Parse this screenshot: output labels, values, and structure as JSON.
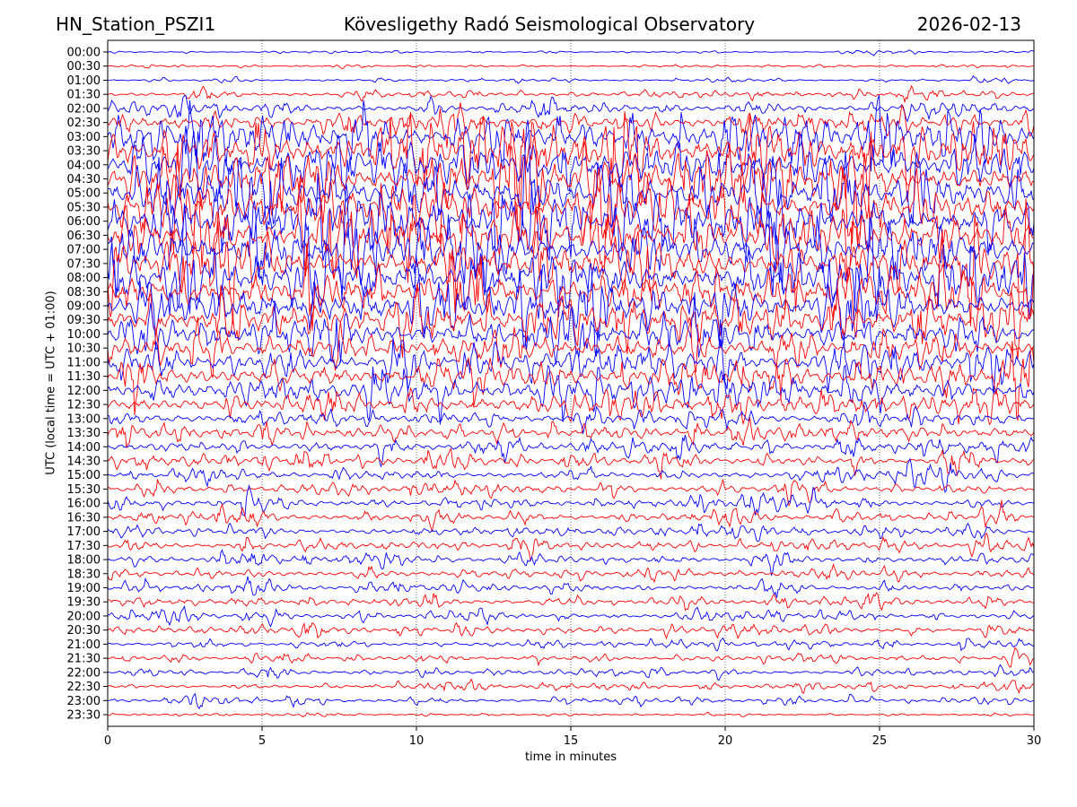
{
  "header": {
    "station": "HN_Station_PSZI1",
    "observatory": "Kövesligethy Radó Seismological Observatory",
    "date": "2026-02-13"
  },
  "chart_data": {
    "type": "line",
    "title": "Kövesligethy Radó Seismological Observatory",
    "xlabel": "time in minutes",
    "ylabel": "UTC (local time = UTC + 01:00)",
    "xlim": [
      0,
      30
    ],
    "xticks": [
      "0",
      "5",
      "10",
      "15",
      "20",
      "25",
      "30"
    ],
    "grid": "vertical dotted at x ticks",
    "colors": [
      "#0000ff",
      "#ff0000"
    ],
    "rows": [
      "00:00",
      "00:30",
      "01:00",
      "01:30",
      "02:00",
      "02:30",
      "03:00",
      "03:30",
      "04:00",
      "04:30",
      "05:00",
      "05:30",
      "06:00",
      "06:30",
      "07:00",
      "07:30",
      "08:00",
      "08:30",
      "09:00",
      "09:30",
      "10:00",
      "10:30",
      "11:00",
      "11:30",
      "12:00",
      "12:30",
      "13:00",
      "13:30",
      "14:00",
      "14:30",
      "15:00",
      "15:30",
      "16:00",
      "16:30",
      "17:00",
      "17:30",
      "18:00",
      "18:30",
      "19:00",
      "19:30",
      "20:00",
      "20:30",
      "21:00",
      "21:30",
      "22:00",
      "22:30",
      "23:00",
      "23:30"
    ],
    "relative_amplitude": [
      2,
      2,
      3,
      6,
      10,
      18,
      38,
      42,
      44,
      45,
      45,
      45,
      45,
      45,
      45,
      45,
      45,
      42,
      40,
      36,
      30,
      28,
      26,
      26,
      24,
      22,
      14,
      14,
      12,
      12,
      10,
      10,
      10,
      10,
      9,
      9,
      9,
      8,
      8,
      8,
      8,
      8,
      6,
      6,
      6,
      6,
      6,
      2
    ]
  }
}
